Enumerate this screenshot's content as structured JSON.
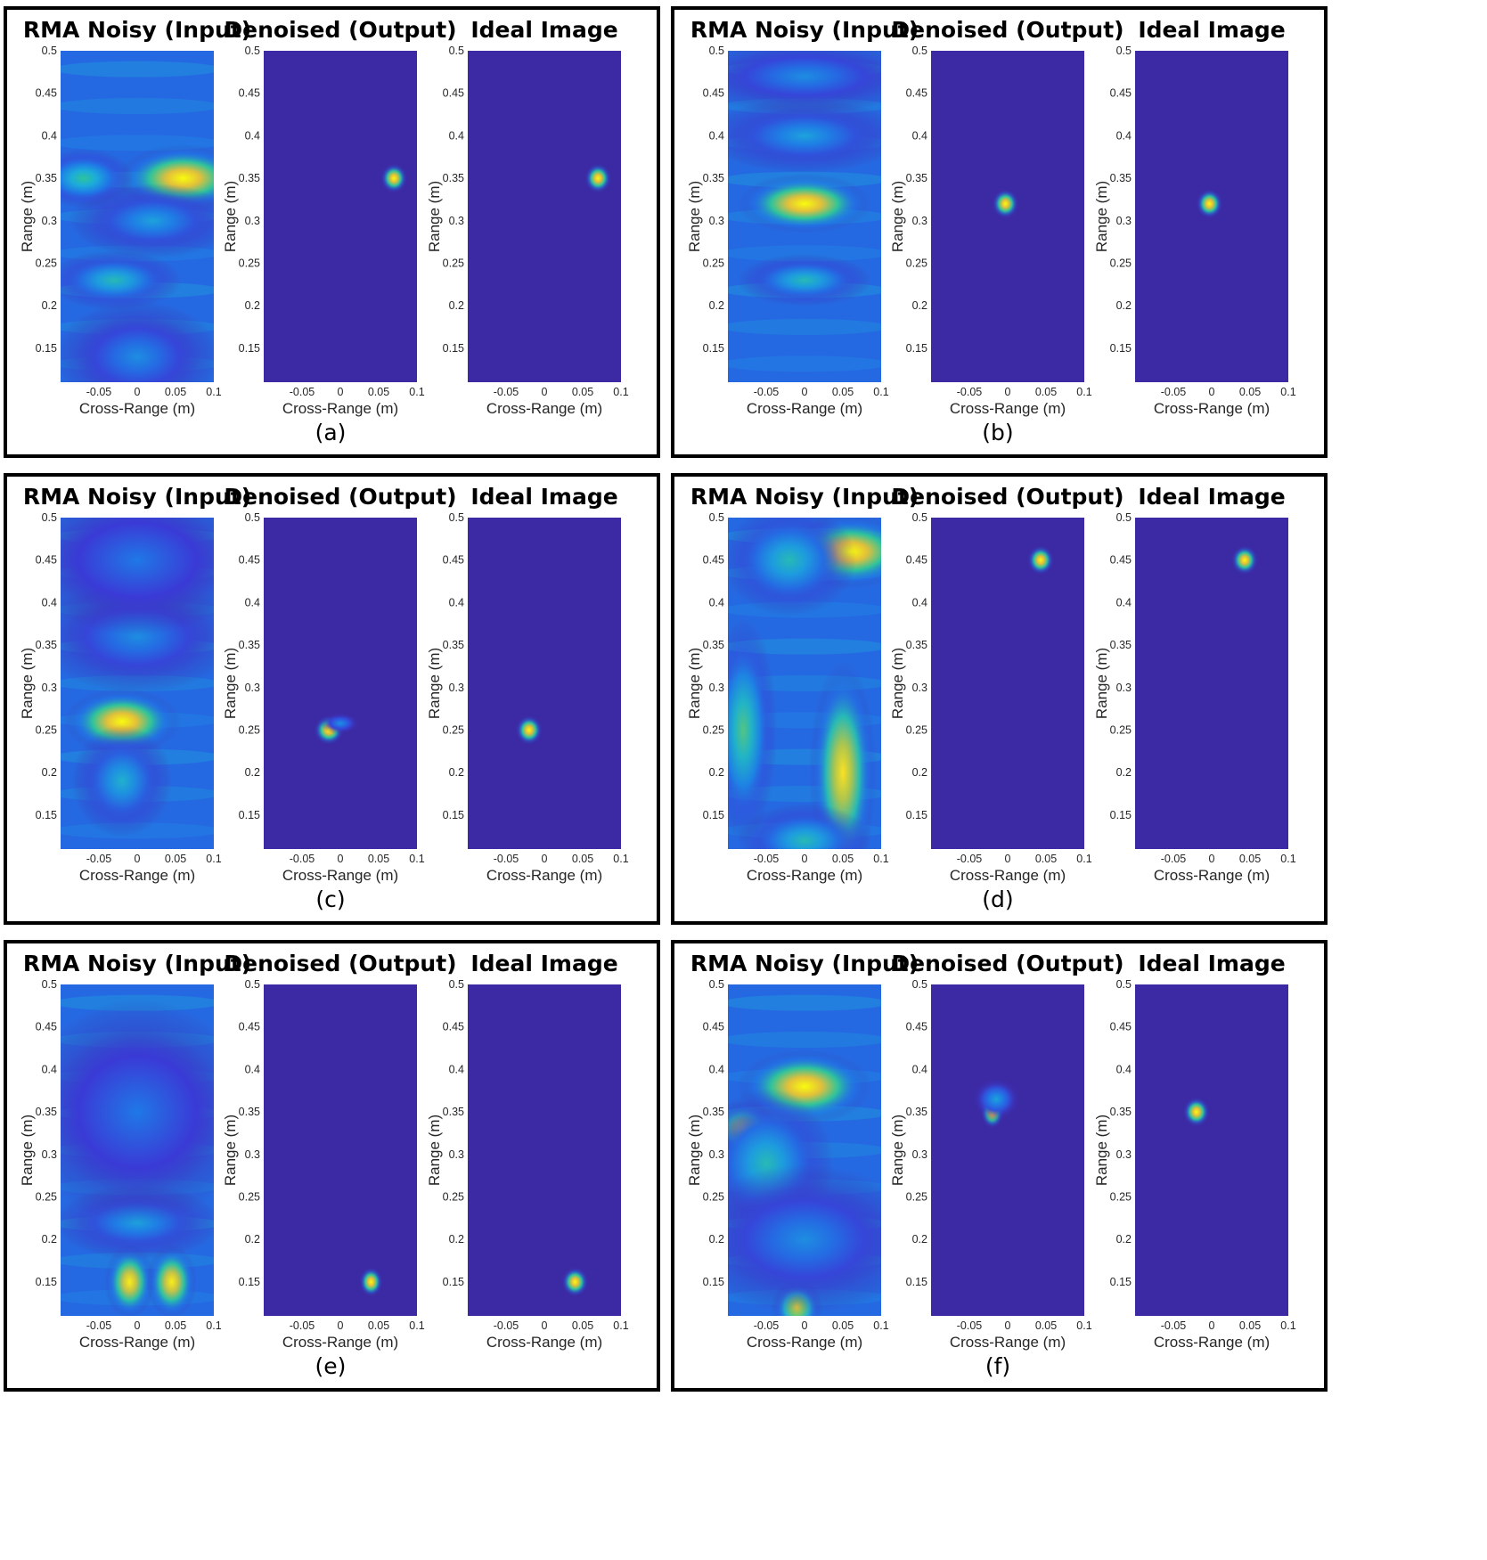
{
  "figure": {
    "panel_titles": {
      "noisy": "RMA Noisy (Input)",
      "denoised": "Denoised (Output)",
      "ideal": "Ideal Image"
    },
    "colormap": [
      "#3f2a9c",
      "#3a3ad6",
      "#1f78e6",
      "#1cacda",
      "#2ec39c",
      "#8bc95a",
      "#e2c03a",
      "#fadb2a",
      "#f9fb0e"
    ],
    "background_color": "#3c2aa4"
  },
  "chart_data": [
    {
      "type": "heatmap",
      "panel": "(a)",
      "plots": [
        "RMA Noisy (Input)",
        "Denoised (Output)",
        "Ideal Image"
      ],
      "xlabel": "Cross-Range (m)",
      "ylabel": "Range (m)",
      "xticks": [
        "-0.05",
        "0",
        "0.05",
        "0.1"
      ],
      "yticks": [
        "0.5",
        "0.45",
        "0.4",
        "0.35",
        "0.3",
        "0.25",
        "0.2",
        "0.15"
      ],
      "xlim": [
        -0.1,
        0.1
      ],
      "ylim": [
        0.11,
        0.5
      ],
      "target": {
        "x": 0.07,
        "y": 0.35
      },
      "noisy_blobs": [
        {
          "x": 0.06,
          "y": 0.35,
          "sx": 0.04,
          "sy": 0.018,
          "a": 1.0
        },
        {
          "x": -0.07,
          "y": 0.35,
          "sx": 0.03,
          "sy": 0.016,
          "a": 0.5
        },
        {
          "x": -0.03,
          "y": 0.23,
          "sx": 0.04,
          "sy": 0.016,
          "a": 0.45
        },
        {
          "x": 0.02,
          "y": 0.3,
          "sx": 0.05,
          "sy": 0.02,
          "a": 0.35
        },
        {
          "x": 0.0,
          "y": 0.14,
          "sx": 0.05,
          "sy": 0.03,
          "a": 0.3
        }
      ],
      "denoised_blobs": [
        {
          "x": 0.07,
          "y": 0.35,
          "sx": 0.008,
          "sy": 0.008,
          "a": 1.0
        }
      ]
    },
    {
      "type": "heatmap",
      "panel": "(b)",
      "plots": [
        "RMA Noisy (Input)",
        "Denoised (Output)",
        "Ideal Image"
      ],
      "xlabel": "Cross-Range (m)",
      "ylabel": "Range (m)",
      "xticks": [
        "-0.05",
        "0",
        "0.05",
        "0.1"
      ],
      "yticks": [
        "0.5",
        "0.45",
        "0.4",
        "0.35",
        "0.3",
        "0.25",
        "0.2",
        "0.15"
      ],
      "xlim": [
        -0.1,
        0.1
      ],
      "ylim": [
        0.11,
        0.5
      ],
      "target": {
        "x": -0.003,
        "y": 0.32
      },
      "noisy_blobs": [
        {
          "x": 0.0,
          "y": 0.32,
          "sx": 0.04,
          "sy": 0.016,
          "a": 1.0
        },
        {
          "x": 0.0,
          "y": 0.23,
          "sx": 0.04,
          "sy": 0.014,
          "a": 0.45
        },
        {
          "x": 0.0,
          "y": 0.4,
          "sx": 0.06,
          "sy": 0.02,
          "a": 0.35
        },
        {
          "x": 0.0,
          "y": 0.47,
          "sx": 0.07,
          "sy": 0.02,
          "a": 0.3
        }
      ],
      "denoised_blobs": [
        {
          "x": -0.003,
          "y": 0.32,
          "sx": 0.008,
          "sy": 0.008,
          "a": 1.0
        }
      ]
    },
    {
      "type": "heatmap",
      "panel": "(c)",
      "plots": [
        "RMA Noisy (Input)",
        "Denoised (Output)",
        "Ideal Image"
      ],
      "xlabel": "Cross-Range (m)",
      "ylabel": "Range (m)",
      "xticks": [
        "-0.05",
        "0",
        "0.05",
        "0.1"
      ],
      "yticks": [
        "0.5",
        "0.45",
        "0.4",
        "0.35",
        "0.3",
        "0.25",
        "0.2",
        "0.15"
      ],
      "xlim": [
        -0.1,
        0.1
      ],
      "ylim": [
        0.11,
        0.5
      ],
      "target": {
        "x": -0.02,
        "y": 0.25
      },
      "noisy_blobs": [
        {
          "x": -0.02,
          "y": 0.26,
          "sx": 0.035,
          "sy": 0.018,
          "a": 1.0
        },
        {
          "x": -0.02,
          "y": 0.19,
          "sx": 0.03,
          "sy": 0.03,
          "a": 0.4
        },
        {
          "x": 0.0,
          "y": 0.36,
          "sx": 0.06,
          "sy": 0.03,
          "a": 0.3
        },
        {
          "x": 0.0,
          "y": 0.45,
          "sx": 0.07,
          "sy": 0.04,
          "a": 0.25
        }
      ],
      "denoised_blobs": [
        {
          "x": -0.015,
          "y": 0.25,
          "sx": 0.009,
          "sy": 0.008,
          "a": 1.0
        },
        {
          "x": 0.0,
          "y": 0.258,
          "sx": 0.012,
          "sy": 0.006,
          "a": 0.3
        }
      ]
    },
    {
      "type": "heatmap",
      "panel": "(d)",
      "plots": [
        "RMA Noisy (Input)",
        "Denoised (Output)",
        "Ideal Image"
      ],
      "xlabel": "Cross-Range (m)",
      "ylabel": "Range (m)",
      "xticks": [
        "-0.05",
        "0",
        "0.05",
        "0.1"
      ],
      "yticks": [
        "0.5",
        "0.45",
        "0.4",
        "0.35",
        "0.3",
        "0.25",
        "0.2",
        "0.15"
      ],
      "xlim": [
        -0.1,
        0.1
      ],
      "ylim": [
        0.11,
        0.5
      ],
      "target": {
        "x": 0.043,
        "y": 0.45
      },
      "noisy_blobs": [
        {
          "x": 0.06,
          "y": 0.46,
          "sx": 0.04,
          "sy": 0.02,
          "a": 1.0
        },
        {
          "x": 0.05,
          "y": 0.2,
          "sx": 0.02,
          "sy": 0.06,
          "a": 0.9
        },
        {
          "x": -0.08,
          "y": 0.25,
          "sx": 0.02,
          "sy": 0.06,
          "a": 0.55
        },
        {
          "x": -0.02,
          "y": 0.45,
          "sx": 0.04,
          "sy": 0.03,
          "a": 0.45
        },
        {
          "x": 0.0,
          "y": 0.12,
          "sx": 0.04,
          "sy": 0.02,
          "a": 0.45
        }
      ],
      "denoised_blobs": [
        {
          "x": 0.043,
          "y": 0.45,
          "sx": 0.008,
          "sy": 0.008,
          "a": 1.0
        }
      ]
    },
    {
      "type": "heatmap",
      "panel": "(e)",
      "plots": [
        "RMA Noisy (Input)",
        "Denoised (Output)",
        "Ideal Image"
      ],
      "xlabel": "Cross-Range (m)",
      "ylabel": "Range (m)",
      "xticks": [
        "-0.05",
        "0",
        "0.05",
        "0.1"
      ],
      "yticks": [
        "0.5",
        "0.45",
        "0.4",
        "0.35",
        "0.3",
        "0.25",
        "0.2",
        "0.15"
      ],
      "xlim": [
        -0.1,
        0.1
      ],
      "ylim": [
        0.11,
        0.5
      ],
      "target": {
        "x": 0.04,
        "y": 0.15
      },
      "noisy_blobs": [
        {
          "x": -0.01,
          "y": 0.15,
          "sx": 0.015,
          "sy": 0.02,
          "a": 0.95
        },
        {
          "x": 0.045,
          "y": 0.15,
          "sx": 0.015,
          "sy": 0.02,
          "a": 0.95
        },
        {
          "x": 0.0,
          "y": 0.22,
          "sx": 0.05,
          "sy": 0.02,
          "a": 0.35
        },
        {
          "x": 0.0,
          "y": 0.35,
          "sx": 0.07,
          "sy": 0.06,
          "a": 0.25
        }
      ],
      "denoised_blobs": [
        {
          "x": 0.04,
          "y": 0.15,
          "sx": 0.007,
          "sy": 0.008,
          "a": 1.0
        }
      ]
    },
    {
      "type": "heatmap",
      "panel": "(f)",
      "plots": [
        "RMA Noisy (Input)",
        "Denoised (Output)",
        "Ideal Image"
      ],
      "xlabel": "Cross-Range (m)",
      "ylabel": "Range (m)",
      "xticks": [
        "-0.05",
        "0",
        "0.05",
        "0.1"
      ],
      "yticks": [
        "0.5",
        "0.45",
        "0.4",
        "0.35",
        "0.3",
        "0.25",
        "0.2",
        "0.15"
      ],
      "xlim": [
        -0.1,
        0.1
      ],
      "ylim": [
        0.11,
        0.5
      ],
      "target": {
        "x": -0.02,
        "y": 0.35
      },
      "noisy_blobs": [
        {
          "x": 0.0,
          "y": 0.38,
          "sx": 0.04,
          "sy": 0.02,
          "a": 1.0
        },
        {
          "x": -0.08,
          "y": 0.33,
          "sx": 0.02,
          "sy": 0.015,
          "a": 0.85
        },
        {
          "x": -0.05,
          "y": 0.29,
          "sx": 0.04,
          "sy": 0.04,
          "a": 0.45
        },
        {
          "x": -0.01,
          "y": 0.12,
          "sx": 0.015,
          "sy": 0.015,
          "a": 0.8
        },
        {
          "x": 0.0,
          "y": 0.2,
          "sx": 0.07,
          "sy": 0.04,
          "a": 0.3
        }
      ],
      "denoised_blobs": [
        {
          "x": -0.02,
          "y": 0.35,
          "sx": 0.007,
          "sy": 0.009,
          "a": 1.0
        },
        {
          "x": -0.015,
          "y": 0.365,
          "sx": 0.015,
          "sy": 0.012,
          "a": 0.35
        }
      ]
    }
  ]
}
